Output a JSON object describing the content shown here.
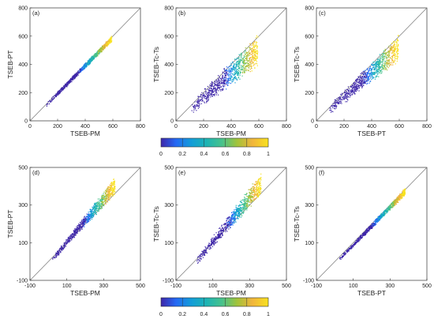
{
  "chart_data": [
    {
      "type": "scatter",
      "panel_label": "(a)",
      "xlabel": "TSEB-PM",
      "ylabel": "TSEB-PT",
      "xlim": [
        0,
        800
      ],
      "ylim": [
        0,
        800
      ],
      "xticks": [
        "0",
        "200",
        "400",
        "600",
        "800"
      ],
      "yticks": [
        "0",
        "200",
        "400",
        "600",
        "800"
      ],
      "scatter_shape": {
        "x_range": [
          110,
          590
        ],
        "slope_low": 0.97,
        "slope_high": 1.01,
        "spread": 12
      },
      "one_to_one_line": true
    },
    {
      "type": "scatter",
      "panel_label": "(b)",
      "xlabel": "TSEB-PM",
      "ylabel": "TSEB-Tc-Ts",
      "xlim": [
        0,
        800
      ],
      "ylim": [
        0,
        800
      ],
      "xticks": [
        "0",
        "200",
        "400",
        "600",
        "800"
      ],
      "yticks": [
        "0",
        "200",
        "400",
        "600",
        "800"
      ],
      "scatter_shape": {
        "x_range": [
          110,
          590
        ],
        "slope_low": 0.7,
        "slope_high": 1.0,
        "spread": 30
      },
      "one_to_one_line": true
    },
    {
      "type": "scatter",
      "panel_label": "(c)",
      "xlabel": "TSEB-PT",
      "ylabel": "TSEB-Tc-Ts",
      "xlim": [
        0,
        800
      ],
      "ylim": [
        0,
        800
      ],
      "xticks": [
        "0",
        "200",
        "400",
        "600",
        "800"
      ],
      "yticks": [
        "0",
        "200",
        "400",
        "600",
        "800"
      ],
      "scatter_shape": {
        "x_range": [
          90,
          590
        ],
        "slope_low": 0.75,
        "slope_high": 1.0,
        "spread": 25
      },
      "one_to_one_line": true
    },
    {
      "type": "scatter",
      "panel_label": "(d)",
      "xlabel": "TSEB-PM",
      "ylabel": "TSEB-PT",
      "xlim": [
        -100,
        500
      ],
      "ylim": [
        -100,
        500
      ],
      "xticks": [
        "-100",
        "100",
        "300",
        "500"
      ],
      "yticks": [
        "-100",
        "100",
        "300",
        "500"
      ],
      "scatter_shape": {
        "x_range": [
          20,
          360
        ],
        "slope_low": 1.05,
        "slope_high": 1.25,
        "spread": 12
      },
      "one_to_one_line": true
    },
    {
      "type": "scatter",
      "panel_label": "(e)",
      "xlabel": "TSEB-PM",
      "ylabel": "TSEB-Tc-Ts",
      "xlim": [
        -100,
        500
      ],
      "ylim": [
        -100,
        500
      ],
      "xticks": [
        "-100",
        "100",
        "300",
        "500"
      ],
      "yticks": [
        "-100",
        "100",
        "300",
        "500"
      ],
      "scatter_shape": {
        "x_range": [
          0,
          360
        ],
        "slope_low": 1.05,
        "slope_high": 1.3,
        "spread": 18
      },
      "one_to_one_line": true
    },
    {
      "type": "scatter",
      "panel_label": "(f)",
      "xlabel": "TSEB-PT",
      "ylabel": "TSEB-Tc-Ts",
      "xlim": [
        -100,
        500
      ],
      "ylim": [
        -100,
        500
      ],
      "xticks": [
        "-100",
        "100",
        "300",
        "500"
      ],
      "yticks": [
        "-100",
        "100",
        "300",
        "500"
      ],
      "scatter_shape": {
        "x_range": [
          20,
          380
        ],
        "slope_low": 0.97,
        "slope_high": 1.04,
        "spread": 8
      },
      "one_to_one_line": true
    }
  ],
  "colorbars": [
    {
      "ticks": [
        "0",
        "0.2",
        "0.4",
        "0.6",
        "0.8",
        "1"
      ],
      "range": [
        0,
        1
      ]
    },
    {
      "ticks": [
        "0",
        "0.2",
        "0.4",
        "0.6",
        "0.8",
        "1"
      ],
      "range": [
        0,
        1
      ]
    }
  ],
  "colormap": [
    "#3e26a8",
    "#2469f4",
    "#139cd8",
    "#1cb3b5",
    "#48c28b",
    "#a2c33a",
    "#f1b43c",
    "#f8e21f"
  ]
}
